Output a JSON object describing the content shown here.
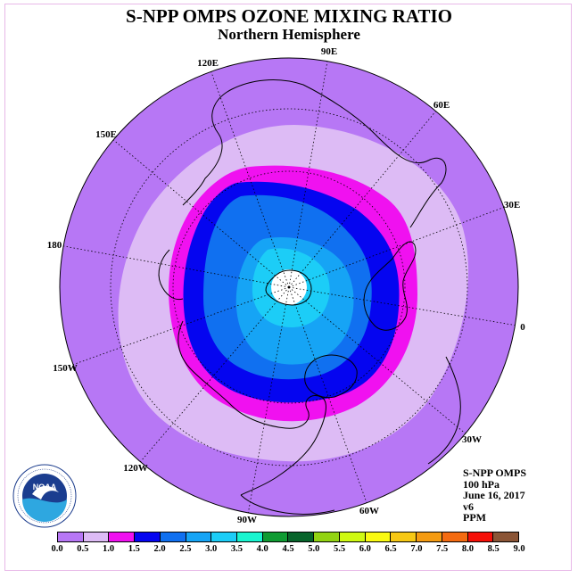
{
  "header": {
    "title": "S-NPP OMPS OZONE MIXING RATIO",
    "subtitle": "Northern Hemisphere"
  },
  "map": {
    "projection": "polar-stereographic-north",
    "longitude_labels": [
      "90E",
      "60E",
      "30E",
      "0",
      "30W",
      "60W",
      "90W",
      "120W",
      "150W",
      "180",
      "150E",
      "120E"
    ],
    "fill_colors": {
      "outer": "#b777f5",
      "band1": "#ddbbf5",
      "band2": "#f011f0",
      "band3": "#0505f0",
      "band4": "#1070f0",
      "band5": "#16a4f5",
      "band6": "#1ccdf7",
      "pole": "#ffffff"
    }
  },
  "logo": {
    "name": "NOAA",
    "ring_text": "NATIONAL OCEANIC AND ATMOSPHERIC ADMINISTRATION - U.S. DEPARTMENT OF COMMERCE"
  },
  "info": {
    "lines": [
      "S-NPP OMPS",
      "100 hPa",
      "June 16, 2017",
      "v6",
      "PPM"
    ]
  },
  "colorbar": {
    "colors": [
      "#b777f5",
      "#ddbbf5",
      "#f011f0",
      "#0505f0",
      "#1070f0",
      "#16a4f5",
      "#1ccdf7",
      "#19f5d0",
      "#0f9b32",
      "#07642a",
      "#92d312",
      "#cff912",
      "#fafa12",
      "#f6c815",
      "#f49b12",
      "#f46b11",
      "#f51008",
      "#8b5536"
    ],
    "tick_labels": [
      "0.0",
      "0.5",
      "1.0",
      "1.5",
      "2.0",
      "2.5",
      "3.0",
      "3.5",
      "4.0",
      "4.5",
      "5.0",
      "5.5",
      "6.0",
      "6.5",
      "7.0",
      "7.5",
      "8.0",
      "8.5",
      "9.0"
    ]
  }
}
